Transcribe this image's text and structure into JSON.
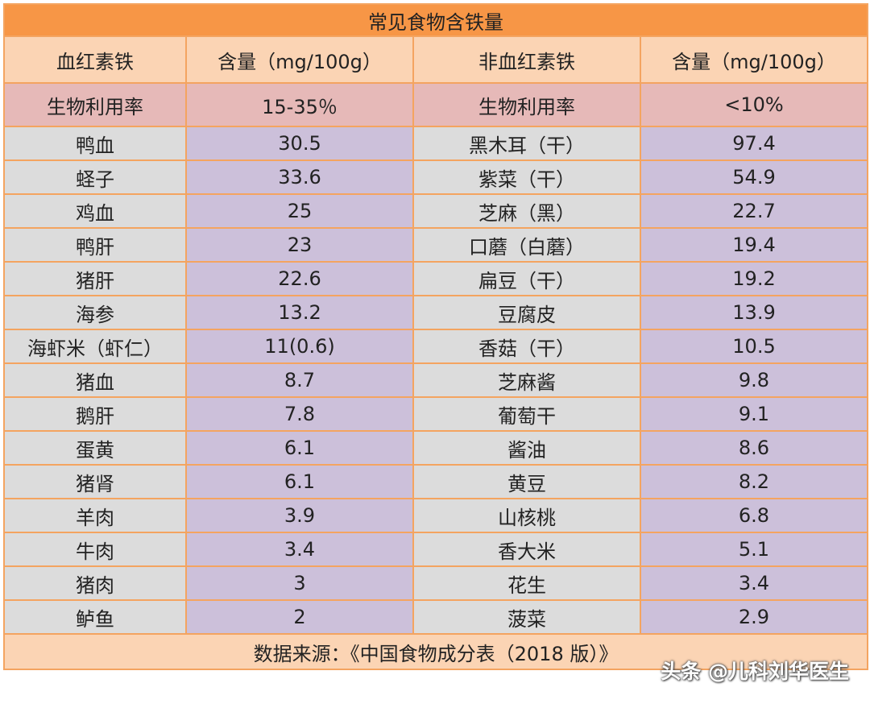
{
  "title": "常见食物含铁量",
  "headers": [
    "血红素铁",
    "含量（mg/100g）",
    "非血红素铁",
    "含量（mg/100g）"
  ],
  "bioavailability": {
    "heme_label": "生物利用率",
    "heme_value": "15-35％",
    "nonheme_label": "生物利用率",
    "nonheme_value": "<10%"
  },
  "rows": [
    [
      "鸭血",
      "30.5",
      "黑木耳（干）",
      "97.4"
    ],
    [
      "蛏子",
      "33.6",
      "紫菜（干）",
      "54.9"
    ],
    [
      "鸡血",
      "25",
      "芝麻（黑）",
      "22.7"
    ],
    [
      "鸭肝",
      "23",
      "口蘑（白蘑）",
      "19.4"
    ],
    [
      "猪肝",
      "22.6",
      "扁豆（干）",
      "19.2"
    ],
    [
      "海参",
      "13.2",
      "豆腐皮",
      "13.9"
    ],
    [
      "海虾米（虾仁）",
      "11(0.6)",
      "香菇（干）",
      "10.5"
    ],
    [
      "猪血",
      "8.7",
      "芝麻酱",
      "9.8"
    ],
    [
      "鹅肝",
      "7.8",
      "葡萄干",
      "9.1"
    ],
    [
      "蛋黄",
      "6.1",
      "酱油",
      "8.6"
    ],
    [
      "猪肾",
      "6.1",
      "黄豆",
      "8.2"
    ],
    [
      "羊肉",
      "3.9",
      "山核桃",
      "6.8"
    ],
    [
      "牛肉",
      "3.4",
      "香大米",
      "5.1"
    ],
    [
      "猪肉",
      "3",
      "花生",
      "3.4"
    ],
    [
      "鲈鱼",
      "2",
      "菠菜",
      "2.9"
    ]
  ],
  "source": "数据来源：《中国食物成分表（2018 版）》",
  "watermark": "头条 @儿科刘华医生",
  "colors": {
    "title_bg": "#f79646",
    "header_bg": "#fbd4b4",
    "bio_row_bg": "#e6b9b8",
    "name_cell_bg": "#dcdcdc",
    "value_cell_bg": "#ccc0da",
    "border": "#f4a460"
  }
}
